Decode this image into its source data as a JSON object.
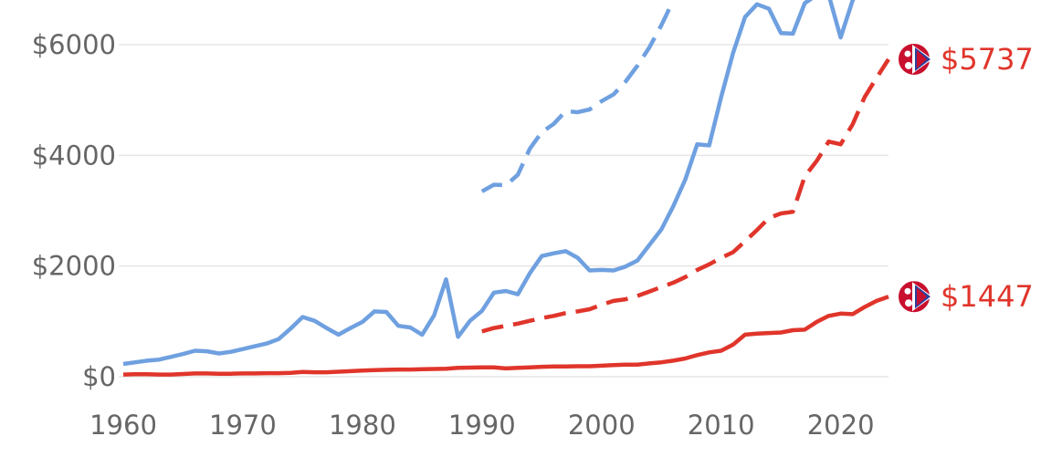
{
  "chart_data": {
    "type": "line",
    "title": "",
    "xlabel": "",
    "ylabel": "",
    "xlim": [
      1960,
      2024
    ],
    "ylim": [
      0,
      6500
    ],
    "grid": "horizontal",
    "x_ticks": [
      1960,
      1970,
      1980,
      1990,
      2000,
      2010,
      2020
    ],
    "x_tick_labels": [
      "1960",
      "1970",
      "1980",
      "1990",
      "2000",
      "2010",
      "2020"
    ],
    "y_ticks": [
      0,
      2000,
      4000,
      6000
    ],
    "y_tick_labels": [
      "$0",
      "$2000",
      "$4000",
      "$6000"
    ],
    "colors": {
      "blue": "#6fa0e0",
      "red": "#e0352b"
    },
    "series": [
      {
        "style": "solid",
        "color": "#6fa0e0",
        "x": [
          1960,
          1961,
          1962,
          1963,
          1964,
          1965,
          1966,
          1967,
          1968,
          1969,
          1970,
          1971,
          1972,
          1973,
          1974,
          1975,
          1976,
          1977,
          1978,
          1979,
          1980,
          1981,
          1982,
          1983,
          1984,
          1985,
          1986,
          1987,
          1988,
          1989,
          1990,
          1991,
          1992,
          1993,
          1994,
          1995,
          1996,
          1997,
          1998,
          1999,
          2000,
          2001,
          2002,
          2003,
          2004,
          2005,
          2006,
          2007,
          2008,
          2009,
          2010,
          2011,
          2012,
          2013,
          2014,
          2015,
          2016,
          2017,
          2018,
          2019,
          2020,
          2021,
          2022
        ],
        "values": [
          230,
          260,
          290,
          310,
          360,
          410,
          470,
          460,
          420,
          450,
          500,
          550,
          600,
          680,
          870,
          1080,
          1010,
          880,
          760,
          880,
          990,
          1180,
          1170,
          920,
          890,
          760,
          1110,
          1760,
          720,
          1010,
          1190,
          1520,
          1550,
          1490,
          1870,
          2180,
          2230,
          2270,
          2150,
          1920,
          1930,
          1920,
          1990,
          2100,
          2380,
          2660,
          3080,
          3560,
          4200,
          4180,
          5050,
          5850,
          6500,
          6730,
          6650,
          6210,
          6200,
          6750,
          6900,
          6900,
          6130,
          6800,
          7200
        ]
      },
      {
        "style": "dashed",
        "color": "#6fa0e0",
        "x": [
          1990,
          1991,
          1992,
          1993,
          1994,
          1995,
          1996,
          1997,
          1998,
          1999,
          2000,
          2001,
          2002,
          2003,
          2004,
          2005,
          2006
        ],
        "values": [
          3350,
          3470,
          3460,
          3650,
          4120,
          4420,
          4570,
          4800,
          4780,
          4830,
          4980,
          5100,
          5330,
          5620,
          5950,
          6350,
          6800
        ]
      },
      {
        "style": "dashed",
        "color": "#e0352b",
        "name": "$5737",
        "x": [
          1990,
          1991,
          1992,
          1993,
          1994,
          1995,
          1996,
          1997,
          1998,
          1999,
          2000,
          2001,
          2002,
          2003,
          2004,
          2005,
          2006,
          2007,
          2008,
          2009,
          2010,
          2011,
          2012,
          2013,
          2014,
          2015,
          2016,
          2017,
          2018,
          2019,
          2020,
          2021,
          2022,
          2023,
          2024
        ],
        "values": [
          820,
          880,
          920,
          960,
          1010,
          1060,
          1100,
          1150,
          1180,
          1220,
          1300,
          1370,
          1400,
          1460,
          1540,
          1620,
          1700,
          1800,
          1930,
          2030,
          2150,
          2250,
          2450,
          2650,
          2870,
          2950,
          2980,
          3620,
          3900,
          4250,
          4200,
          4560,
          5050,
          5400,
          5737
        ]
      },
      {
        "style": "solid",
        "color": "#e0352b",
        "name": "$1447",
        "x": [
          1960,
          1961,
          1962,
          1963,
          1964,
          1965,
          1966,
          1967,
          1968,
          1969,
          1970,
          1971,
          1972,
          1973,
          1974,
          1975,
          1976,
          1977,
          1978,
          1979,
          1980,
          1981,
          1982,
          1983,
          1984,
          1985,
          1986,
          1987,
          1988,
          1989,
          1990,
          1991,
          1992,
          1993,
          1994,
          1995,
          1996,
          1997,
          1998,
          1999,
          2000,
          2001,
          2002,
          2003,
          2004,
          2005,
          2006,
          2007,
          2008,
          2009,
          2010,
          2011,
          2012,
          2013,
          2014,
          2015,
          2016,
          2017,
          2018,
          2019,
          2020,
          2021,
          2022,
          2023,
          2024
        ],
        "values": [
          40,
          45,
          45,
          40,
          40,
          50,
          60,
          60,
          55,
          55,
          60,
          60,
          65,
          65,
          70,
          85,
          80,
          80,
          90,
          100,
          110,
          120,
          125,
          130,
          130,
          135,
          140,
          145,
          160,
          165,
          170,
          170,
          150,
          160,
          170,
          180,
          185,
          185,
          190,
          190,
          200,
          210,
          220,
          220,
          240,
          260,
          290,
          330,
          390,
          440,
          470,
          580,
          760,
          780,
          790,
          800,
          840,
          850,
          990,
          1100,
          1140,
          1130,
          1260,
          1370,
          1447
        ]
      }
    ],
    "end_labels": [
      {
        "text": "$5737",
        "value": 5737,
        "color": "#e0352b"
      },
      {
        "text": "$1447",
        "value": 1447,
        "color": "#e0352b"
      }
    ],
    "markers": [
      {
        "icon": "nepal-flag-icon",
        "value": 5737
      },
      {
        "icon": "nepal-flag-icon",
        "value": 1447
      }
    ]
  }
}
